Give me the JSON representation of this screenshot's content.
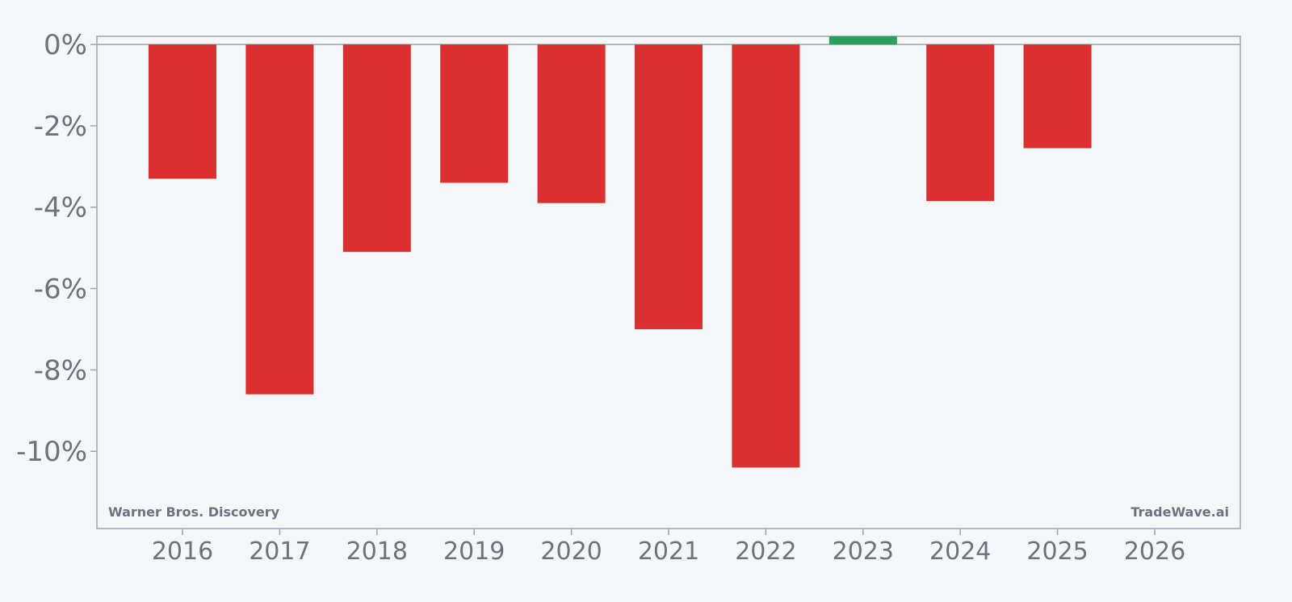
{
  "chart_data": {
    "type": "bar",
    "categories": [
      "2016",
      "2017",
      "2018",
      "2019",
      "2020",
      "2021",
      "2022",
      "2023",
      "2024",
      "2025",
      "2026"
    ],
    "values": [
      -3.3,
      -8.6,
      -5.1,
      -3.4,
      -3.9,
      -7.0,
      -10.4,
      0.2,
      -3.85,
      -2.55,
      null
    ],
    "ylim": [
      -11.9,
      0.2
    ],
    "yticks": [
      0,
      -2,
      -4,
      -6,
      -8,
      -10
    ],
    "ytick_labels": [
      "0%",
      "-2%",
      "-4%",
      "-6%",
      "-8%",
      "-10%"
    ],
    "xlabel": "",
    "ylabel": "",
    "title": "",
    "grid": false,
    "colors": {
      "negative": "#dc3030",
      "positive": "#2ca05a",
      "axis": "#9ca3af",
      "text": "#6b7280",
      "background": "#f4f6f8"
    }
  },
  "annotations": {
    "company": "Warner Bros. Discovery",
    "brand": "TradeWave.ai"
  }
}
